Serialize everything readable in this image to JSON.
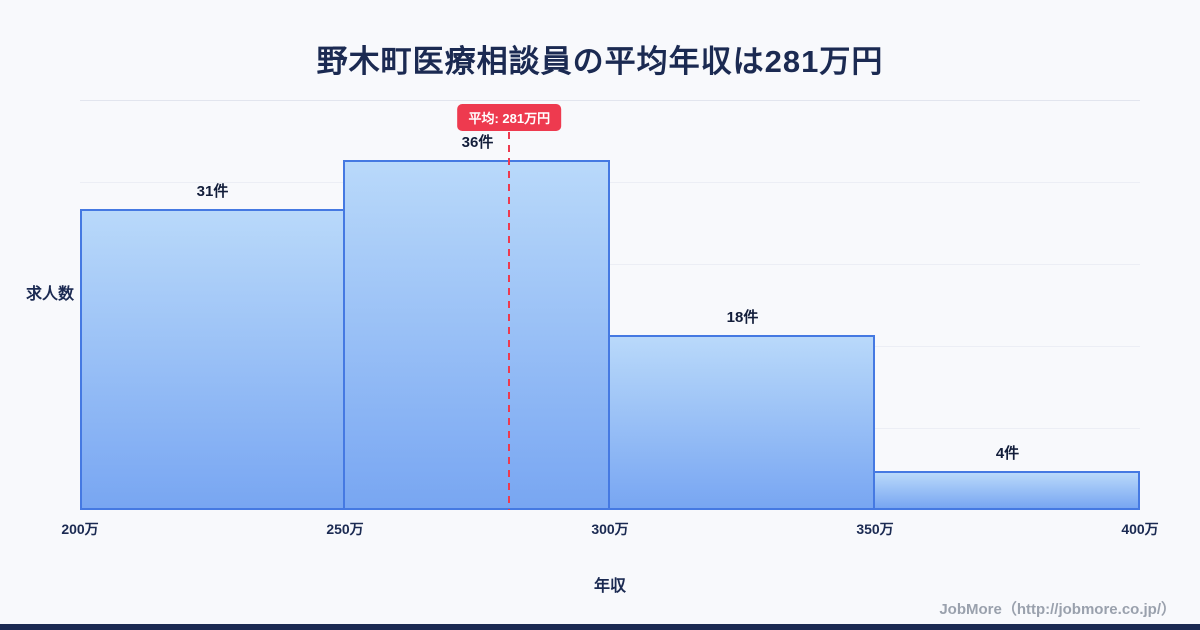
{
  "title": "野木町医療相談員の平均年収は281万円",
  "chart_data": {
    "type": "bar",
    "title": "野木町医療相談員の平均年収は281万円",
    "categories": [
      "200万-250万",
      "250万-300万",
      "300万-350万",
      "350万-400万"
    ],
    "values": [
      31,
      36,
      18,
      4
    ],
    "bar_labels": [
      "31件",
      "36件",
      "18件",
      "4件"
    ],
    "x_ticks": [
      "200万",
      "250万",
      "300万",
      "350万",
      "400万"
    ],
    "xlim": [
      200,
      400
    ],
    "ylim": [
      0,
      36
    ],
    "xlabel": "年収",
    "ylabel": "求人数",
    "grid": "horizontal-faint",
    "legend": "none",
    "average": {
      "value": 281,
      "label": "平均: 281万円"
    },
    "colors": {
      "bar_top": "#b9d9fa",
      "bar_bottom": "#78a6f2",
      "bar_border": "#4579e2",
      "average_line": "#ee3a4f",
      "title_text": "#1b2a52",
      "background": "#f8f9fc"
    }
  },
  "footer": {
    "credit": "JobMore（http://jobmore.co.jp/）"
  }
}
